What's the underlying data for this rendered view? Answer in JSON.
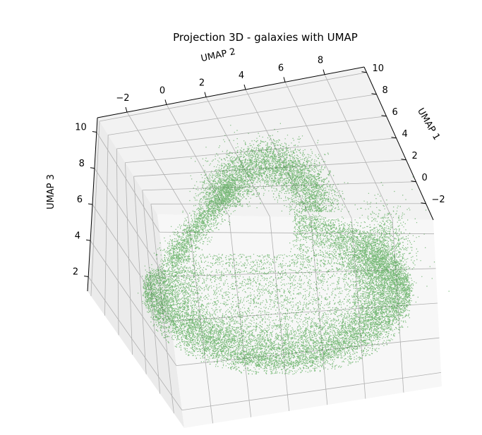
{
  "chart_data": {
    "type": "scatter",
    "projection": "3d",
    "title": "Projection 3D - galaxies with UMAP",
    "xlabel": "UMAP 2",
    "ylabel": "UMAP 1",
    "zlabel": "UMAP 3",
    "xlim": [
      -3.5,
      10
    ],
    "ylim": [
      -3.5,
      10.5
    ],
    "zlim": [
      1.2,
      10.8
    ],
    "xticks": [
      -2,
      0,
      2,
      4,
      6,
      8
    ],
    "xtick_labels": [
      "−2",
      "0",
      "2",
      "4",
      "6",
      "8"
    ],
    "yticks": [
      -2,
      0,
      2,
      4,
      6,
      8,
      10
    ],
    "ytick_labels": [
      "−2",
      "0",
      "2",
      "4",
      "6",
      "8",
      "10"
    ],
    "zticks": [
      2,
      4,
      6,
      8,
      10
    ],
    "ztick_labels": [
      "2",
      "4",
      "6",
      "8",
      "10"
    ],
    "grid": true,
    "pane_color": "#f2f2f2",
    "grid_color": "#b0b0b0",
    "series": [
      {
        "color": "#008000",
        "marker_size": 1,
        "alpha": 0.5,
        "approx_point_count": 18000
      }
    ]
  }
}
